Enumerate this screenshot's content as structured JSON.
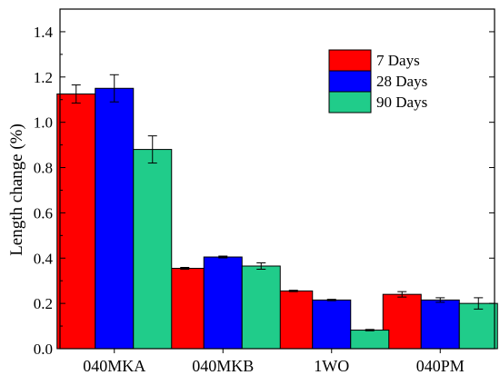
{
  "chart_data": {
    "type": "bar",
    "title": "",
    "xlabel": "",
    "ylabel": "Length change (%)",
    "ylim": [
      0.0,
      1.5
    ],
    "yticks": [
      0.0,
      0.2,
      0.4,
      0.6,
      0.8,
      1.0,
      1.2,
      1.4
    ],
    "ytick_labels": [
      "0.0",
      "0.2",
      "0.4",
      "0.6",
      "0.8",
      "1.0",
      "1.2",
      "1.4"
    ],
    "categories": [
      "040MKA",
      "040MKB",
      "1WO",
      "040PM"
    ],
    "grid": false,
    "legend_position": "top-right",
    "error_bars": true,
    "series": [
      {
        "name": "7 Days",
        "color": "#ff0000",
        "values": [
          1.125,
          0.355,
          0.255,
          0.24
        ],
        "errors": [
          0.04,
          0.004,
          0.003,
          0.012
        ]
      },
      {
        "name": "28 Days",
        "color": "#0000ff",
        "values": [
          1.15,
          0.405,
          0.215,
          0.215
        ],
        "errors": [
          0.06,
          0.004,
          0.003,
          0.01
        ]
      },
      {
        "name": "90 Days",
        "color": "#20cc8a",
        "values": [
          0.88,
          0.365,
          0.082,
          0.2
        ],
        "errors": [
          0.06,
          0.014,
          0.003,
          0.025
        ]
      }
    ]
  }
}
